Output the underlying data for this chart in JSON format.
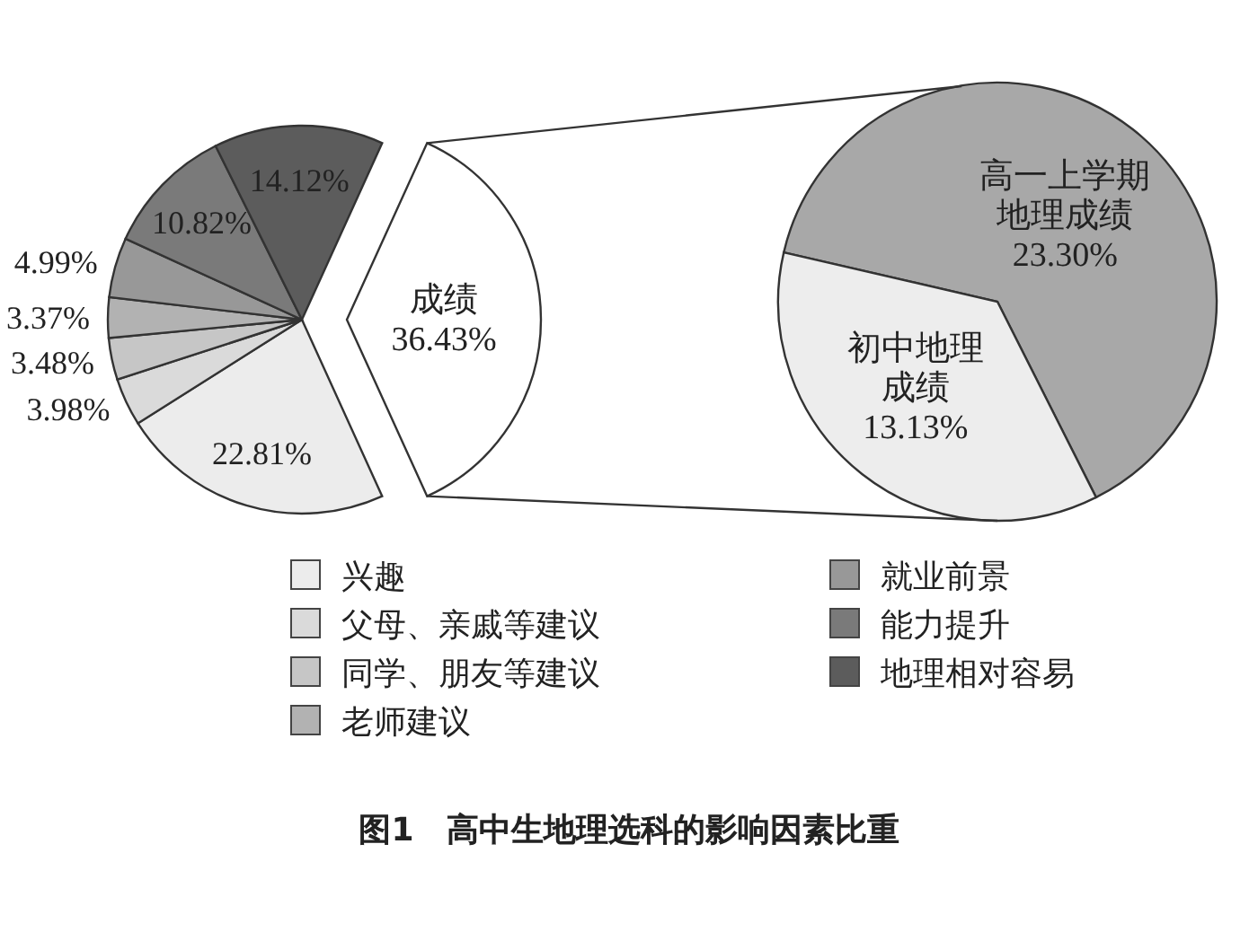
{
  "chart_data": [
    {
      "type": "pie",
      "title": "图1　高中生地理选科的影响因素比重",
      "categories": [
        "兴趣",
        "父母、亲戚等建议",
        "同学、朋友等建议",
        "老师建议",
        "就业前景",
        "能力提升",
        "地理相对容易",
        "成绩"
      ],
      "values": [
        22.81,
        3.98,
        3.48,
        3.37,
        4.99,
        10.82,
        14.12,
        36.43
      ],
      "colors": [
        "#ececec",
        "#dadada",
        "#c6c6c6",
        "#b2b2b2",
        "#989898",
        "#7a7a7a",
        "#5c5c5c",
        "#ffffff"
      ],
      "value_labels": [
        "22.81%",
        "3.98%",
        "3.48%",
        "3.37%",
        "4.99%",
        "10.82%",
        "14.12%",
        "36.43%"
      ],
      "legend": "bottom"
    },
    {
      "type": "pie",
      "categories": [
        "高一上学期地理成绩",
        "初中地理成绩"
      ],
      "values": [
        23.3,
        13.13
      ],
      "colors": [
        "#a8a8a8",
        "#ededed"
      ],
      "value_labels": [
        "23.30%",
        "13.13%"
      ]
    }
  ]
}
